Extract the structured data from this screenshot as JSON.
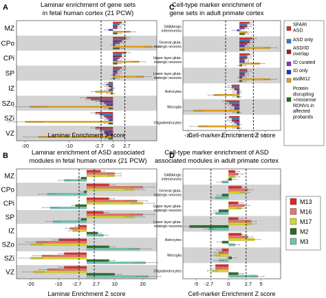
{
  "colors": {
    "band": "#d3d3d3",
    "frame": "#555555",
    "errorbar": "#6e6e6e",
    "legend_border": "#7a7a7a"
  },
  "legend_top": [
    {
      "name": "SFARI ASD",
      "color": "#d62a2a"
    },
    {
      "name": "ASD only",
      "color": "#2f7fc1"
    },
    {
      "name": "ASD/ID overlap",
      "color": "#9a1e2e"
    },
    {
      "name": "ID curated",
      "color": "#8a33c8"
    },
    {
      "name": "ID only",
      "color": "#2233cc"
    },
    {
      "name": "asdM12",
      "color": "#e3a31d"
    },
    {
      "name": "Protein disrupting +missense RDNVs in affected probands",
      "color": "#2b6a24"
    }
  ],
  "legend_bottom": [
    {
      "name": "M13",
      "color": "#d62a2a"
    },
    {
      "name": "M16",
      "color": "#e8736b"
    },
    {
      "name": "M17",
      "color": "#d4d42a"
    },
    {
      "name": "M2",
      "color": "#2b6a24"
    },
    {
      "name": "M3",
      "color": "#6fc2b4"
    }
  ],
  "chart_data": [
    {
      "panel": "A",
      "type": "bar",
      "orientation": "horizontal",
      "title": "Laminar enrichment of gene sets in fetal human cortex (21 PCW)",
      "xlabel": "Laminar Enrichment Z score",
      "xlim": [
        -22,
        10
      ],
      "xticks": [
        "-20",
        "-10",
        "-2.7",
        "2.7",
        "0"
      ],
      "xtick_values": [
        -20,
        -10,
        -2.7,
        2.7,
        0
      ],
      "threshold_lines": [
        -2.7,
        2.7
      ],
      "categories": [
        "MZ",
        "CPo",
        "CPi",
        "SP",
        "IZ",
        "SZo",
        "SZi",
        "VZ"
      ],
      "shaded_rows": [
        1,
        3,
        5,
        7
      ],
      "series": [
        {
          "name": "SFARI ASD",
          "color": "#d62a2a",
          "values": [
            2.0,
            3.0,
            3.0,
            2.0,
            -1.0,
            -6.0,
            -4.0,
            -4.0
          ]
        },
        {
          "name": "ASD only",
          "color": "#2f7fc1",
          "values": [
            1.5,
            2.5,
            2.0,
            1.5,
            -1.5,
            -5.0,
            -3.0,
            -3.0
          ]
        },
        {
          "name": "ASD/ID overlap",
          "color": "#9a1e2e",
          "values": [
            1.0,
            2.0,
            2.0,
            1.0,
            -1.0,
            -3.0,
            -2.0,
            -2.0
          ]
        },
        {
          "name": "ID curated",
          "color": "#8a33c8",
          "values": [
            1.0,
            1.5,
            1.5,
            1.0,
            -0.5,
            -2.0,
            -1.5,
            -2.0
          ]
        },
        {
          "name": "ID only",
          "color": "#2233cc",
          "values": [
            -1.0,
            0.5,
            1.0,
            0.5,
            -1.0,
            -1.5,
            -1.0,
            -1.5
          ]
        },
        {
          "name": "asdM12",
          "color": "#e3a31d",
          "values": [
            4.0,
            9.0,
            6.0,
            7.0,
            -4.0,
            -19.0,
            -20.0,
            -17.0
          ]
        },
        {
          "name": "Protein disrupting +missense RDNVs in affected probands",
          "color": "#2b6a24",
          "values": [
            1.0,
            1.5,
            1.0,
            0.5,
            -0.5,
            -1.0,
            -1.0,
            -1.0
          ]
        }
      ]
    },
    {
      "panel": "B",
      "type": "bar",
      "orientation": "horizontal",
      "title": "Laminar enrichment of ASD associated modules in fetal human cortex (21 PCW)",
      "xlabel": "Laminar Enrichment Z score",
      "xlim": [
        -25,
        25
      ],
      "xticks": [
        "-20",
        "-10",
        "-2.7",
        "2.7",
        "10",
        "20"
      ],
      "xtick_values": [
        -20,
        -10,
        -2.7,
        2.7,
        10,
        20
      ],
      "threshold_lines": [
        -2.7,
        2.7
      ],
      "categories": [
        "MZ",
        "CPo",
        "CPi",
        "SP",
        "IZ",
        "SZo",
        "SZi",
        "VZ"
      ],
      "shaded_rows": [
        1,
        3,
        5,
        7
      ],
      "series": [
        {
          "name": "M13",
          "color": "#d62a2a",
          "values": [
            5.0,
            8.0,
            8.0,
            6.0,
            -3.0,
            -10.0,
            -8.0,
            -8.0
          ]
        },
        {
          "name": "M16",
          "color": "#e8736b",
          "values": [
            10.0,
            20.0,
            18.0,
            20.0,
            -6.0,
            -18.0,
            -16.0,
            -14.0
          ]
        },
        {
          "name": "M17",
          "color": "#d4d42a",
          "values": [
            10.0,
            17.0,
            20.0,
            17.0,
            -5.0,
            -20.0,
            -20.0,
            -19.0
          ]
        },
        {
          "name": "M2",
          "color": "#2b6a24",
          "values": [
            -2.0,
            -1.0,
            -4.0,
            -2.0,
            4.0,
            8.0,
            8.0,
            10.0
          ]
        },
        {
          "name": "M3",
          "color": "#6fc2b4",
          "values": [
            -8.0,
            -14.0,
            -13.0,
            -12.0,
            6.0,
            19.0,
            21.0,
            22.0
          ]
        }
      ]
    },
    {
      "panel": "C",
      "type": "bar",
      "orientation": "horizontal",
      "title": "Cell-type marker enrichment of gene sets in adult primate cortex",
      "xlabel": "Cell-marker Enrichment Z score",
      "xlim": [
        -11,
        8
      ],
      "xticks": [
        "-10",
        "-2.7",
        "0",
        "2.7",
        "5"
      ],
      "xtick_values": [
        -10,
        -2.7,
        0,
        2.7,
        5
      ],
      "threshold_lines": [
        -2.7,
        2.7
      ],
      "categories": [
        "GABAergic interneurons",
        "General glutamatergic neurons",
        "Upper layer glutamatergic neurons",
        "Lower layer glutamatergic neurons",
        "Astrocytes",
        "Microglia",
        "Oligodendrocytes"
      ],
      "category_display": [
        "GABAergic\ninterneurons",
        "General gluta-\nmatergic neurons",
        "Upper layer gluta-\nmatergic neurons",
        "Lower layer gluta-\nmatergic neurons",
        "Astrocytes",
        "Microglia",
        "Oligodendrocytes"
      ],
      "shaded_rows": [
        1,
        3,
        5
      ],
      "series": [
        {
          "name": "SFARI ASD",
          "color": "#d62a2a",
          "values": [
            2.0,
            2.5,
            2.0,
            1.5,
            -1.5,
            -2.5,
            -2.0
          ]
        },
        {
          "name": "ASD only",
          "color": "#2f7fc1",
          "values": [
            1.5,
            2.0,
            1.5,
            1.5,
            -1.5,
            -2.0,
            -1.5
          ]
        },
        {
          "name": "ASD/ID overlap",
          "color": "#9a1e2e",
          "values": [
            1.5,
            2.0,
            1.5,
            1.0,
            -1.0,
            -1.5,
            -1.5
          ]
        },
        {
          "name": "ID curated",
          "color": "#8a33c8",
          "values": [
            1.0,
            1.5,
            1.0,
            1.0,
            -0.5,
            -1.0,
            -1.0
          ]
        },
        {
          "name": "ID only",
          "color": "#2233cc",
          "values": [
            -0.5,
            1.0,
            1.0,
            0.5,
            -0.5,
            -1.0,
            -0.5
          ]
        },
        {
          "name": "asdM12",
          "color": "#e3a31d",
          "values": [
            1.5,
            6.0,
            4.0,
            6.0,
            -5.0,
            -9.0,
            -8.0
          ]
        },
        {
          "name": "Protein disrupting +missense RDNVs in affected probands",
          "color": "#2b6a24",
          "values": [
            1.0,
            1.0,
            0.5,
            0.5,
            -0.5,
            -0.5,
            -0.5
          ]
        }
      ]
    },
    {
      "panel": "D",
      "type": "bar",
      "orientation": "horizontal",
      "title": "Cell-type marker enrichment of ASD associated modules in adult primate cortex",
      "xlabel": "Cell-marker Enrichment Z score",
      "xlim": [
        -7,
        8
      ],
      "xticks": [
        "-5",
        "-2.7",
        "0",
        "2.7",
        "5"
      ],
      "xtick_values": [
        -5,
        -2.7,
        0,
        2.7,
        5
      ],
      "threshold_lines": [
        -2.7,
        2.7
      ],
      "categories": [
        "GABAergic interneurons",
        "General glutamatergic neurons",
        "Upper layer glutamatergic neurons",
        "Lower layer glutamatergic neurons",
        "Astrocytes",
        "Microglia",
        "Oligodendrocytes"
      ],
      "category_display": [
        "GABAergic\ninterneurons",
        "General gluta-\nmatergic neurons",
        "Upper layer gluta-\nmatergic neurons",
        "Lower layer gluta-\nmatergic neurons",
        "Astrocytes",
        "Microglia",
        "Oligodendrocytes"
      ],
      "shaded_rows": [
        1,
        3,
        5
      ],
      "series": [
        {
          "name": "M13",
          "color": "#d62a2a",
          "values": [
            1.0,
            2.0,
            1.5,
            1.5,
            2.0,
            -1.0,
            -2.0
          ]
        },
        {
          "name": "M16",
          "color": "#e8736b",
          "values": [
            1.5,
            3.0,
            2.5,
            3.5,
            3.0,
            -1.5,
            -2.0
          ]
        },
        {
          "name": "M17",
          "color": "#d4d42a",
          "values": [
            1.0,
            2.5,
            2.0,
            3.5,
            4.0,
            -2.0,
            -2.5
          ]
        },
        {
          "name": "M2",
          "color": "#2b6a24",
          "values": [
            0.5,
            -1.0,
            -1.5,
            -6.0,
            -1.0,
            0.5,
            1.5
          ]
        },
        {
          "name": "M3",
          "color": "#6fc2b4",
          "values": [
            -1.0,
            -2.0,
            -2.0,
            -3.0,
            1.0,
            -1.5,
            4.5
          ]
        }
      ]
    }
  ]
}
